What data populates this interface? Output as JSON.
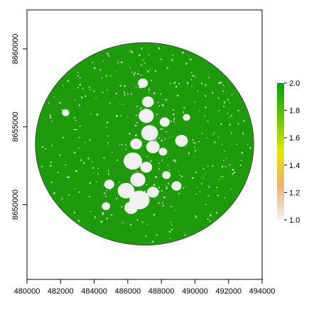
{
  "chart_data": {
    "type": "heatmap",
    "title": "",
    "xlabel": "",
    "ylabel": "",
    "xlim": [
      480000,
      494000
    ],
    "ylim": [
      8645200,
      8662500
    ],
    "x_ticks": [
      480000,
      482000,
      484000,
      486000,
      488000,
      490000,
      492000,
      494000
    ],
    "x_tick_labels": [
      "480000",
      "482000",
      "484000",
      "486000",
      "488000",
      "490000",
      "492000",
      "494000"
    ],
    "y_ticks": [
      8650000,
      8655000,
      8660000
    ],
    "y_tick_labels": [
      "8650000",
      "8655000",
      "8660000"
    ],
    "raster": {
      "shape": "circle",
      "center": [
        487000,
        8653900
      ],
      "radius": 6500,
      "dominant_value": 2.0,
      "minor_value": 1.0,
      "patches_of_minor_value": [
        {
          "x": 486900,
          "y": 8657800,
          "r": 300
        },
        {
          "x": 487200,
          "y": 8656600,
          "r": 350
        },
        {
          "x": 487100,
          "y": 8655700,
          "r": 450
        },
        {
          "x": 487300,
          "y": 8654600,
          "r": 500
        },
        {
          "x": 486500,
          "y": 8653900,
          "r": 350
        },
        {
          "x": 487500,
          "y": 8653700,
          "r": 400
        },
        {
          "x": 486300,
          "y": 8652800,
          "r": 550
        },
        {
          "x": 487100,
          "y": 8652400,
          "r": 350
        },
        {
          "x": 486600,
          "y": 8651600,
          "r": 450
        },
        {
          "x": 485900,
          "y": 8650900,
          "r": 500
        },
        {
          "x": 486700,
          "y": 8650300,
          "r": 600
        },
        {
          "x": 487500,
          "y": 8650800,
          "r": 350
        },
        {
          "x": 486200,
          "y": 8649800,
          "r": 400
        },
        {
          "x": 489200,
          "y": 8654100,
          "r": 380
        },
        {
          "x": 488200,
          "y": 8655300,
          "r": 300
        },
        {
          "x": 489500,
          "y": 8655600,
          "r": 220
        },
        {
          "x": 484900,
          "y": 8651300,
          "r": 300
        },
        {
          "x": 488300,
          "y": 8651900,
          "r": 250
        },
        {
          "x": 488900,
          "y": 8651200,
          "r": 300
        },
        {
          "x": 482300,
          "y": 8655900,
          "r": 220
        },
        {
          "x": 484700,
          "y": 8649900,
          "r": 250
        },
        {
          "x": 488100,
          "y": 8653400,
          "r": 250
        }
      ]
    },
    "legend": {
      "position": "right",
      "min": 1.0,
      "max": 2.0,
      "ticks": [
        1.0,
        1.2,
        1.4,
        1.6,
        1.8,
        2.0
      ],
      "tick_labels": [
        "1.0",
        "1.2",
        "1.4",
        "1.6",
        "1.8",
        "2.0"
      ],
      "colors": [
        "#F2F2F2",
        "#ECB176",
        "#E6E600",
        "#63C600",
        "#00A600"
      ]
    },
    "colors": {
      "fill_high": "#1E9B0A",
      "fill_low": "#F0F0F0",
      "edge": "#333333"
    }
  }
}
